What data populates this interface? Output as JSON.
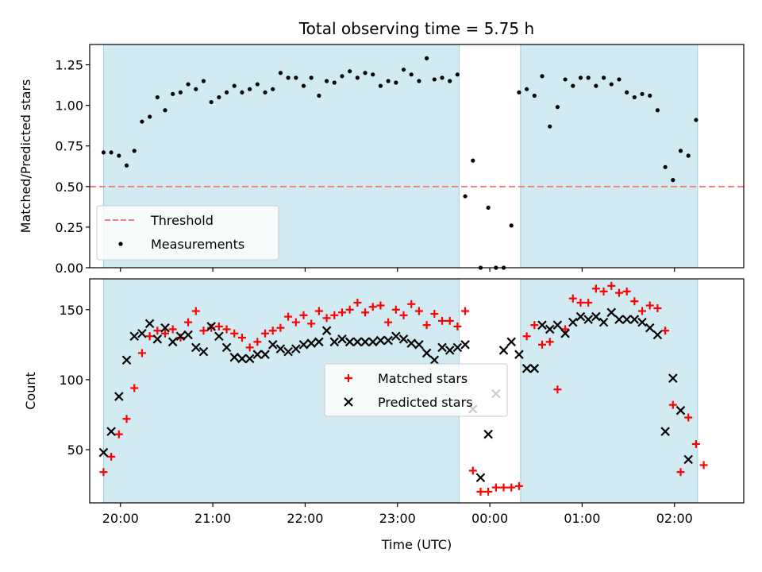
{
  "chart_data": [
    {
      "type": "scatter",
      "title": "Total observing time = 5.75 h",
      "ylabel": "Matched/Predicted stars",
      "xlabel": "",
      "xlim": [
        "19:40",
        "02:45"
      ],
      "ylim": [
        0,
        1.375
      ],
      "yticks": [
        0.0,
        0.25,
        0.5,
        0.75,
        1.0,
        1.25
      ],
      "ytick_labels": [
        "0.00",
        "0.25",
        "0.50",
        "0.75",
        "1.00",
        "1.25"
      ],
      "legend_position": "lower-left",
      "threshold": {
        "name": "Threshold",
        "value": 0.5,
        "color": "#f08080",
        "style": "dashed"
      },
      "observing_windows": [
        {
          "start": "19:49",
          "end": "23:40"
        },
        {
          "start": "00:20",
          "end": "02:15"
        }
      ],
      "shade_color": "#add8e6",
      "series": [
        {
          "name": "Measurements",
          "color": "#000000",
          "marker": "dot",
          "points": [
            [
              "19:49",
              0.71
            ],
            [
              "19:54",
              0.71
            ],
            [
              "19:59",
              0.69
            ],
            [
              "20:04",
              0.63
            ],
            [
              "20:09",
              0.72
            ],
            [
              "20:14",
              0.9
            ],
            [
              "20:19",
              0.93
            ],
            [
              "20:24",
              1.05
            ],
            [
              "20:29",
              0.97
            ],
            [
              "20:34",
              1.07
            ],
            [
              "20:39",
              1.08
            ],
            [
              "20:44",
              1.13
            ],
            [
              "20:49",
              1.1
            ],
            [
              "20:54",
              1.15
            ],
            [
              "20:59",
              1.02
            ],
            [
              "21:04",
              1.05
            ],
            [
              "21:09",
              1.08
            ],
            [
              "21:14",
              1.12
            ],
            [
              "21:19",
              1.08
            ],
            [
              "21:24",
              1.1
            ],
            [
              "21:29",
              1.13
            ],
            [
              "21:34",
              1.08
            ],
            [
              "21:39",
              1.1
            ],
            [
              "21:44",
              1.2
            ],
            [
              "21:49",
              1.17
            ],
            [
              "21:54",
              1.17
            ],
            [
              "21:59",
              1.12
            ],
            [
              "22:04",
              1.17
            ],
            [
              "22:09",
              1.06
            ],
            [
              "22:14",
              1.15
            ],
            [
              "22:19",
              1.14
            ],
            [
              "22:24",
              1.18
            ],
            [
              "22:29",
              1.21
            ],
            [
              "22:34",
              1.17
            ],
            [
              "22:39",
              1.2
            ],
            [
              "22:44",
              1.19
            ],
            [
              "22:49",
              1.12
            ],
            [
              "22:54",
              1.15
            ],
            [
              "22:59",
              1.14
            ],
            [
              "23:04",
              1.22
            ],
            [
              "23:09",
              1.19
            ],
            [
              "23:14",
              1.15
            ],
            [
              "23:19",
              1.29
            ],
            [
              "23:24",
              1.16
            ],
            [
              "23:29",
              1.17
            ],
            [
              "23:34",
              1.15
            ],
            [
              "23:39",
              1.19
            ],
            [
              "23:44",
              0.44
            ],
            [
              "23:49",
              0.66
            ],
            [
              "23:54",
              0.0
            ],
            [
              "23:59",
              0.37
            ],
            [
              "00:04",
              0.0
            ],
            [
              "00:09",
              0.0
            ],
            [
              "00:14",
              0.26
            ],
            [
              "00:19",
              1.08
            ],
            [
              "00:24",
              1.1
            ],
            [
              "00:29",
              1.06
            ],
            [
              "00:34",
              1.18
            ],
            [
              "00:39",
              0.87
            ],
            [
              "00:44",
              0.99
            ],
            [
              "00:49",
              1.16
            ],
            [
              "00:54",
              1.12
            ],
            [
              "00:59",
              1.17
            ],
            [
              "01:04",
              1.17
            ],
            [
              "01:09",
              1.12
            ],
            [
              "01:14",
              1.17
            ],
            [
              "01:19",
              1.13
            ],
            [
              "01:24",
              1.16
            ],
            [
              "01:29",
              1.08
            ],
            [
              "01:34",
              1.05
            ],
            [
              "01:39",
              1.07
            ],
            [
              "01:44",
              1.06
            ],
            [
              "01:49",
              0.97
            ],
            [
              "01:54",
              0.62
            ],
            [
              "01:59",
              0.54
            ],
            [
              "02:04",
              0.72
            ],
            [
              "02:09",
              0.69
            ],
            [
              "02:14",
              0.91
            ]
          ]
        }
      ]
    },
    {
      "type": "scatter",
      "title": "",
      "ylabel": "Count",
      "xlabel": "Time (UTC)",
      "xlim": [
        "19:40",
        "02:45"
      ],
      "ylim": [
        12,
        172
      ],
      "yticks": [
        50,
        100,
        150
      ],
      "ytick_labels": [
        "50",
        "100",
        "150"
      ],
      "xticks": [
        "20:00",
        "21:00",
        "22:00",
        "23:00",
        "00:00",
        "01:00",
        "02:00"
      ],
      "xtick_labels": [
        "20:00",
        "21:00",
        "22:00",
        "23:00",
        "00:00",
        "01:00",
        "02:00"
      ],
      "legend_position": "center",
      "observing_windows": [
        {
          "start": "19:49",
          "end": "23:40"
        },
        {
          "start": "00:20",
          "end": "02:15"
        }
      ],
      "shade_color": "#add8e6",
      "series": [
        {
          "name": "Matched stars",
          "color": "#ff0000",
          "marker": "plus",
          "points": [
            [
              "19:49",
              34
            ],
            [
              "19:54",
              45
            ],
            [
              "19:59",
              61
            ],
            [
              "20:04",
              72
            ],
            [
              "20:09",
              94
            ],
            [
              "20:14",
              119
            ],
            [
              "20:19",
              131
            ],
            [
              "20:24",
              135
            ],
            [
              "20:29",
              133
            ],
            [
              "20:34",
              136
            ],
            [
              "20:39",
              130
            ],
            [
              "20:44",
              141
            ],
            [
              "20:49",
              149
            ],
            [
              "20:54",
              135
            ],
            [
              "20:59",
              137
            ],
            [
              "21:04",
              138
            ],
            [
              "21:09",
              136
            ],
            [
              "21:14",
              133
            ],
            [
              "21:19",
              130
            ],
            [
              "21:24",
              123
            ],
            [
              "21:29",
              127
            ],
            [
              "21:34",
              133
            ],
            [
              "21:39",
              135
            ],
            [
              "21:44",
              137
            ],
            [
              "21:49",
              145
            ],
            [
              "21:54",
              141
            ],
            [
              "21:59",
              146
            ],
            [
              "22:04",
              140
            ],
            [
              "22:09",
              149
            ],
            [
              "22:14",
              144
            ],
            [
              "22:19",
              146
            ],
            [
              "22:24",
              148
            ],
            [
              "22:29",
              150
            ],
            [
              "22:34",
              155
            ],
            [
              "22:39",
              148
            ],
            [
              "22:44",
              152
            ],
            [
              "22:49",
              153
            ],
            [
              "22:54",
              141
            ],
            [
              "22:59",
              150
            ],
            [
              "23:04",
              146
            ],
            [
              "23:09",
              154
            ],
            [
              "23:14",
              149
            ],
            [
              "23:19",
              139
            ],
            [
              "23:24",
              147
            ],
            [
              "23:29",
              142
            ],
            [
              "23:34",
              142
            ],
            [
              "23:39",
              138
            ],
            [
              "23:44",
              149
            ],
            [
              "23:49",
              35
            ],
            [
              "23:54",
              20
            ],
            [
              "23:59",
              20
            ],
            [
              "00:04",
              23
            ],
            [
              "00:09",
              23
            ],
            [
              "00:14",
              23
            ],
            [
              "00:19",
              24
            ],
            [
              "00:24",
              131
            ],
            [
              "00:29",
              139
            ],
            [
              "00:34",
              125
            ],
            [
              "00:39",
              127
            ],
            [
              "00:44",
              93
            ],
            [
              "00:49",
              136
            ],
            [
              "00:54",
              158
            ],
            [
              "00:59",
              155
            ],
            [
              "01:04",
              155
            ],
            [
              "01:09",
              165
            ],
            [
              "01:14",
              163
            ],
            [
              "01:19",
              167
            ],
            [
              "01:24",
              162
            ],
            [
              "01:29",
              163
            ],
            [
              "01:34",
              156
            ],
            [
              "01:39",
              149
            ],
            [
              "01:44",
              153
            ],
            [
              "01:49",
              151
            ],
            [
              "01:54",
              135
            ],
            [
              "01:59",
              82
            ],
            [
              "02:04",
              34
            ],
            [
              "02:09",
              73
            ],
            [
              "02:14",
              54
            ],
            [
              "02:19",
              39
            ]
          ]
        },
        {
          "name": "Predicted stars",
          "color": "#000000",
          "marker": "x",
          "points": [
            [
              "19:49",
              48
            ],
            [
              "19:54",
              63
            ],
            [
              "19:59",
              88
            ],
            [
              "20:04",
              114
            ],
            [
              "20:09",
              131
            ],
            [
              "20:14",
              133
            ],
            [
              "20:19",
              140
            ],
            [
              "20:24",
              129
            ],
            [
              "20:29",
              137
            ],
            [
              "20:34",
              127
            ],
            [
              "20:39",
              131
            ],
            [
              "20:44",
              132
            ],
            [
              "20:49",
              123
            ],
            [
              "20:54",
              120
            ],
            [
              "20:59",
              138
            ],
            [
              "21:04",
              131
            ],
            [
              "21:09",
              123
            ],
            [
              "21:14",
              116
            ],
            [
              "21:19",
              115
            ],
            [
              "21:24",
              115
            ],
            [
              "21:29",
              118
            ],
            [
              "21:34",
              118
            ],
            [
              "21:39",
              125
            ],
            [
              "21:44",
              122
            ],
            [
              "21:49",
              120
            ],
            [
              "21:54",
              122
            ],
            [
              "21:59",
              125
            ],
            [
              "22:04",
              126
            ],
            [
              "22:09",
              127
            ],
            [
              "22:14",
              135
            ],
            [
              "22:19",
              127
            ],
            [
              "22:24",
              129
            ],
            [
              "22:29",
              127
            ],
            [
              "22:34",
              127
            ],
            [
              "22:39",
              127
            ],
            [
              "22:44",
              127
            ],
            [
              "22:49",
              128
            ],
            [
              "22:54",
              128
            ],
            [
              "22:59",
              131
            ],
            [
              "23:04",
              129
            ],
            [
              "23:09",
              126
            ],
            [
              "23:14",
              125
            ],
            [
              "23:19",
              119
            ],
            [
              "23:24",
              114
            ],
            [
              "23:29",
              123
            ],
            [
              "23:34",
              121
            ],
            [
              "23:39",
              123
            ],
            [
              "23:44",
              125
            ],
            [
              "23:49",
              79
            ],
            [
              "23:54",
              30
            ],
            [
              "23:59",
              61
            ],
            [
              "00:04",
              90
            ],
            [
              "00:09",
              121
            ],
            [
              "00:14",
              127
            ],
            [
              "00:19",
              118
            ],
            [
              "00:24",
              108
            ],
            [
              "00:29",
              108
            ],
            [
              "00:34",
              139
            ],
            [
              "00:39",
              136
            ],
            [
              "00:44",
              139
            ],
            [
              "00:49",
              133
            ],
            [
              "00:54",
              141
            ],
            [
              "00:59",
              145
            ],
            [
              "01:04",
              143
            ],
            [
              "01:09",
              145
            ],
            [
              "01:14",
              141
            ],
            [
              "01:19",
              148
            ],
            [
              "01:24",
              143
            ],
            [
              "01:29",
              143
            ],
            [
              "01:34",
              143
            ],
            [
              "01:39",
              141
            ],
            [
              "01:44",
              137
            ],
            [
              "01:49",
              132
            ],
            [
              "01:54",
              63
            ],
            [
              "01:59",
              101
            ],
            [
              "02:04",
              78
            ],
            [
              "02:09",
              43
            ]
          ]
        }
      ]
    }
  ]
}
